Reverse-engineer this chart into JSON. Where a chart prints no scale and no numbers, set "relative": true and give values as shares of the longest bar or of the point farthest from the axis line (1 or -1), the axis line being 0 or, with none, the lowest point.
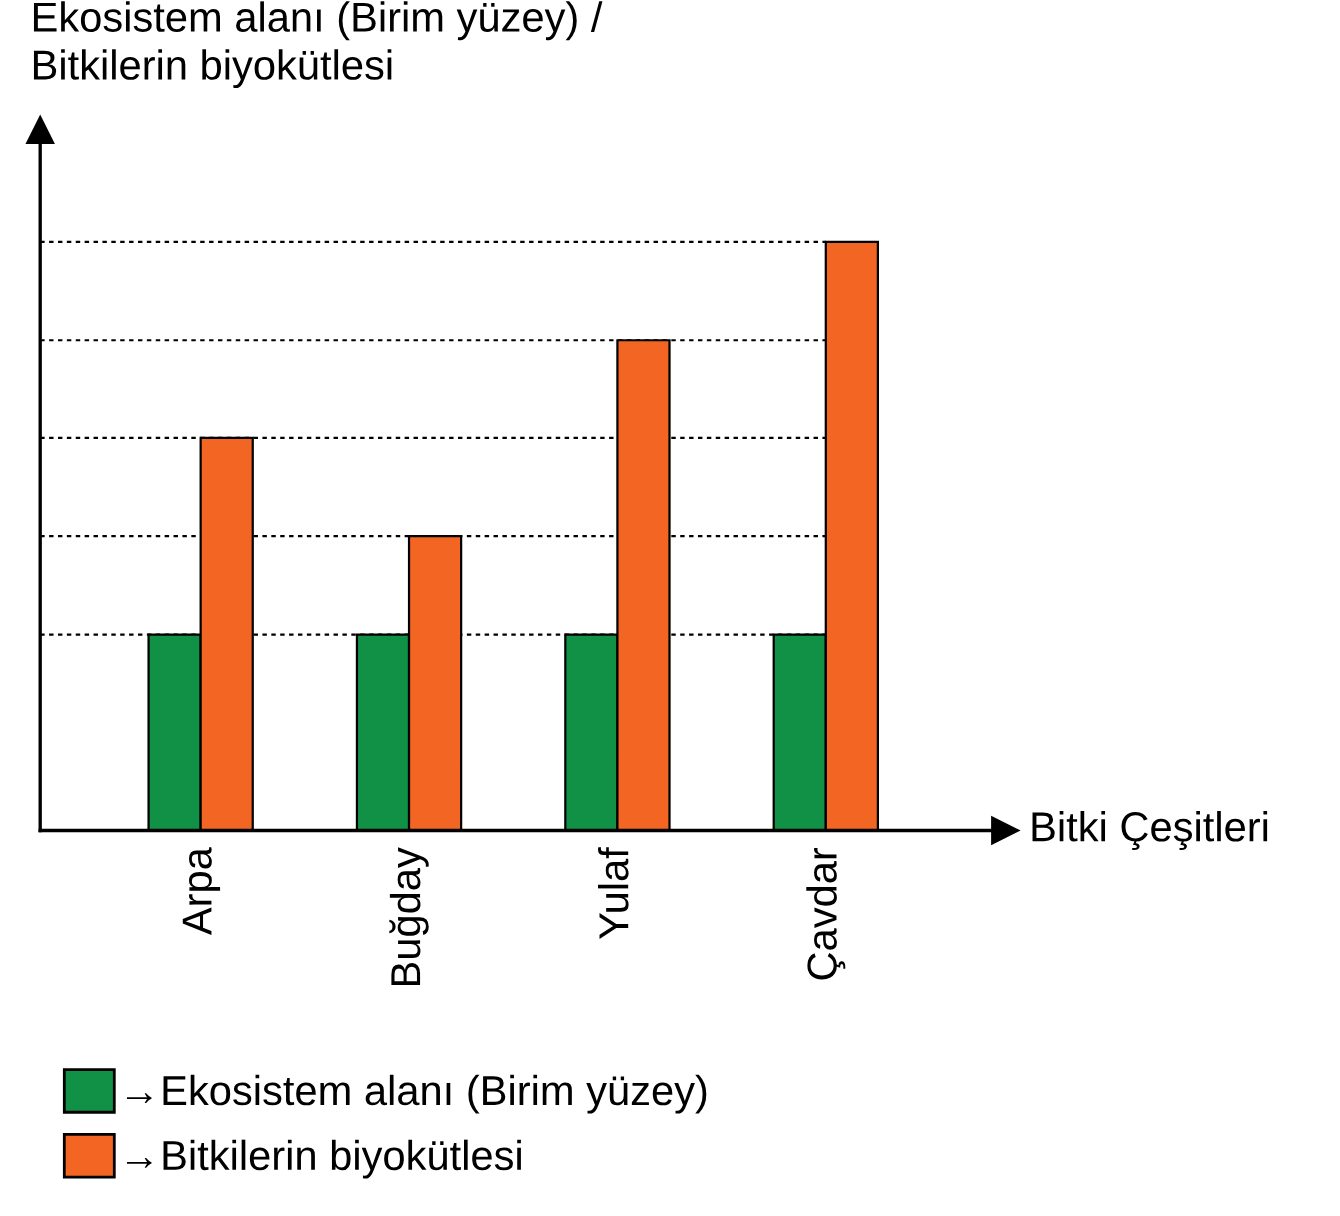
{
  "chart_data": {
    "type": "bar",
    "relative": true,
    "ylabel": "Ekosistem alanı (Birim yüzey) /\nBitkilerin biyokütlesi",
    "xlabel": "Bitki Çeşitleri",
    "categories": [
      "Arpa",
      "Buğday",
      "Yulaf",
      "Çavdar"
    ],
    "series": [
      {
        "name": "→Ekosistem alanı (Birim yüzey)",
        "color": "#109146",
        "values": [
          0.333,
          0.333,
          0.333,
          0.333
        ]
      },
      {
        "name": "→Bitkilerin biyokütlesi",
        "color": "#f26522",
        "values": [
          0.667,
          0.5,
          0.833,
          1
        ]
      }
    ],
    "ref_lines": [
      {
        "axis": "y",
        "value": 0.333,
        "color": "#000000",
        "line_style": "dotted"
      },
      {
        "axis": "y",
        "value": 0.5,
        "color": "#000000",
        "line_style": "dotted"
      },
      {
        "axis": "y",
        "value": 0.667,
        "color": "#000000",
        "line_style": "dotted"
      },
      {
        "axis": "y",
        "value": 0.833,
        "color": "#000000",
        "line_style": "dotted"
      },
      {
        "axis": "y",
        "value": 1,
        "color": "#000000",
        "line_style": "dotted"
      }
    ],
    "legend": "bottom",
    "grid": false
  }
}
